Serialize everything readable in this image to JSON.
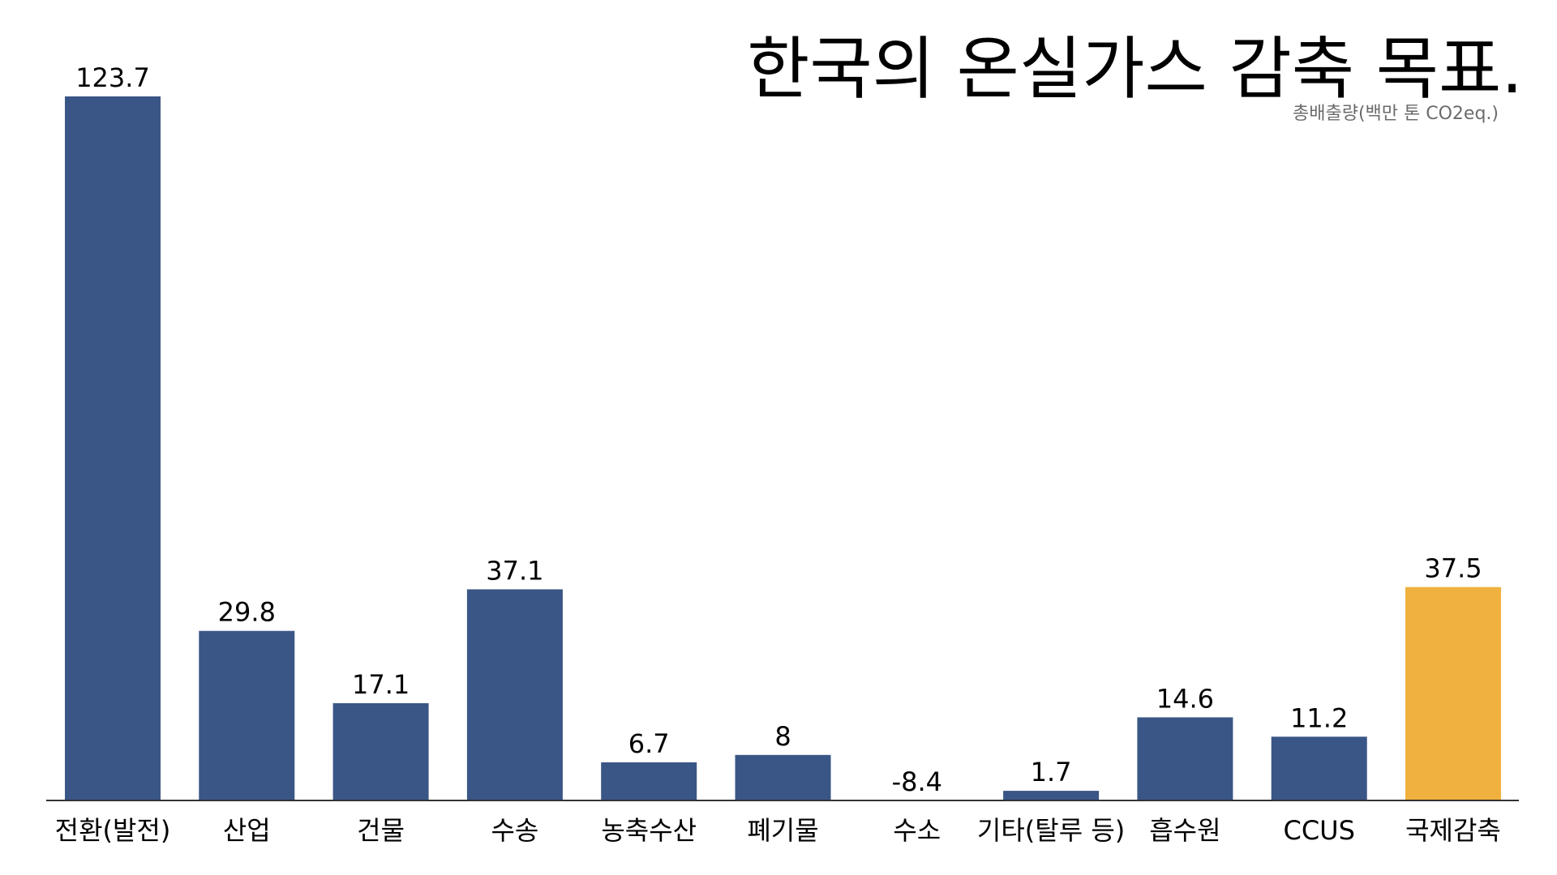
{
  "chart_data": {
    "type": "bar",
    "title": "한국의 온실가스 감축 목표.",
    "subtitle": "총배출량(백만 톤 CO2eq.)",
    "categories": [
      "전환(발전)",
      "산업",
      "건물",
      "수송",
      "농축수산",
      "폐기물",
      "수소",
      "기타(탈루 등)",
      "흡수원",
      "CCUS",
      "국제감축"
    ],
    "values": [
      123.7,
      29.8,
      17.1,
      37.1,
      6.7,
      8,
      -8.4,
      1.7,
      14.6,
      11.2,
      37.5
    ],
    "value_labels": [
      "123.7",
      "29.8",
      "17.1",
      "37.1",
      "6.7",
      "8",
      "-8.4",
      "1.7",
      "14.6",
      "11.2",
      "37.5"
    ],
    "ylim": [
      0,
      123.7
    ],
    "grid": false,
    "legend": "none",
    "colors": {
      "default_bar": "#3a5686",
      "highlight_bar": "#f0b13f",
      "negative_label": "#d9432c",
      "axis": "#333333"
    },
    "highlight_index": 10
  }
}
